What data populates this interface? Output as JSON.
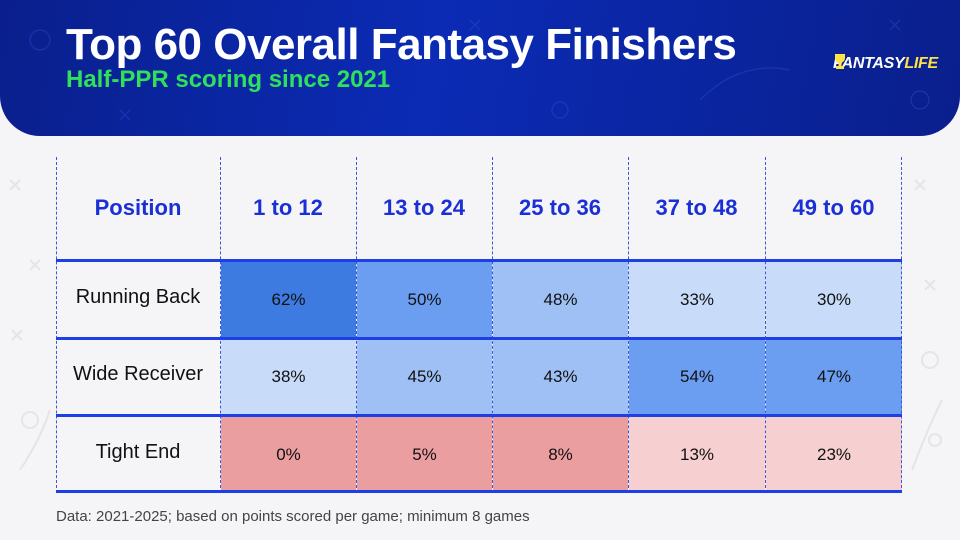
{
  "header": {
    "title": "Top 60 Overall Fantasy Finishers",
    "subtitle": "Half-PPR scoring since 2021",
    "logo": "FANTASYLIFE"
  },
  "chart_data": {
    "type": "table",
    "corner_label": "Position",
    "columns": [
      "1 to 12",
      "13 to 24",
      "25 to 36",
      "37 to 48",
      "49 to 60"
    ],
    "rows": [
      {
        "label": "Running Back",
        "values": [
          "62%",
          "50%",
          "48%",
          "33%",
          "30%"
        ]
      },
      {
        "label": "Wide Receiver",
        "values": [
          "38%",
          "45%",
          "43%",
          "54%",
          "47%"
        ]
      },
      {
        "label": "Tight End",
        "values": [
          "0%",
          "5%",
          "8%",
          "13%",
          "23%"
        ]
      }
    ],
    "cell_colors": [
      [
        "#3d7be0",
        "#6b9df0",
        "#9ec0f5",
        "#c8dcfa",
        "#c8dcfa"
      ],
      [
        "#c8dcfa",
        "#9ec0f5",
        "#9ec0f5",
        "#6b9df0",
        "#6b9df0"
      ],
      [
        "#ea9ea0",
        "#ea9ea0",
        "#ea9ea0",
        "#f6cfd0",
        "#f6cfd0"
      ]
    ]
  },
  "footnote": "Data: 2021-2025; based on points scored per game; minimum 8 games",
  "colors": {
    "banner": "#0b2bb5",
    "title": "#ffffff",
    "subtitle": "#2fe05a",
    "header_text": "#1b2fd6",
    "separator": "#1f3fe6"
  }
}
